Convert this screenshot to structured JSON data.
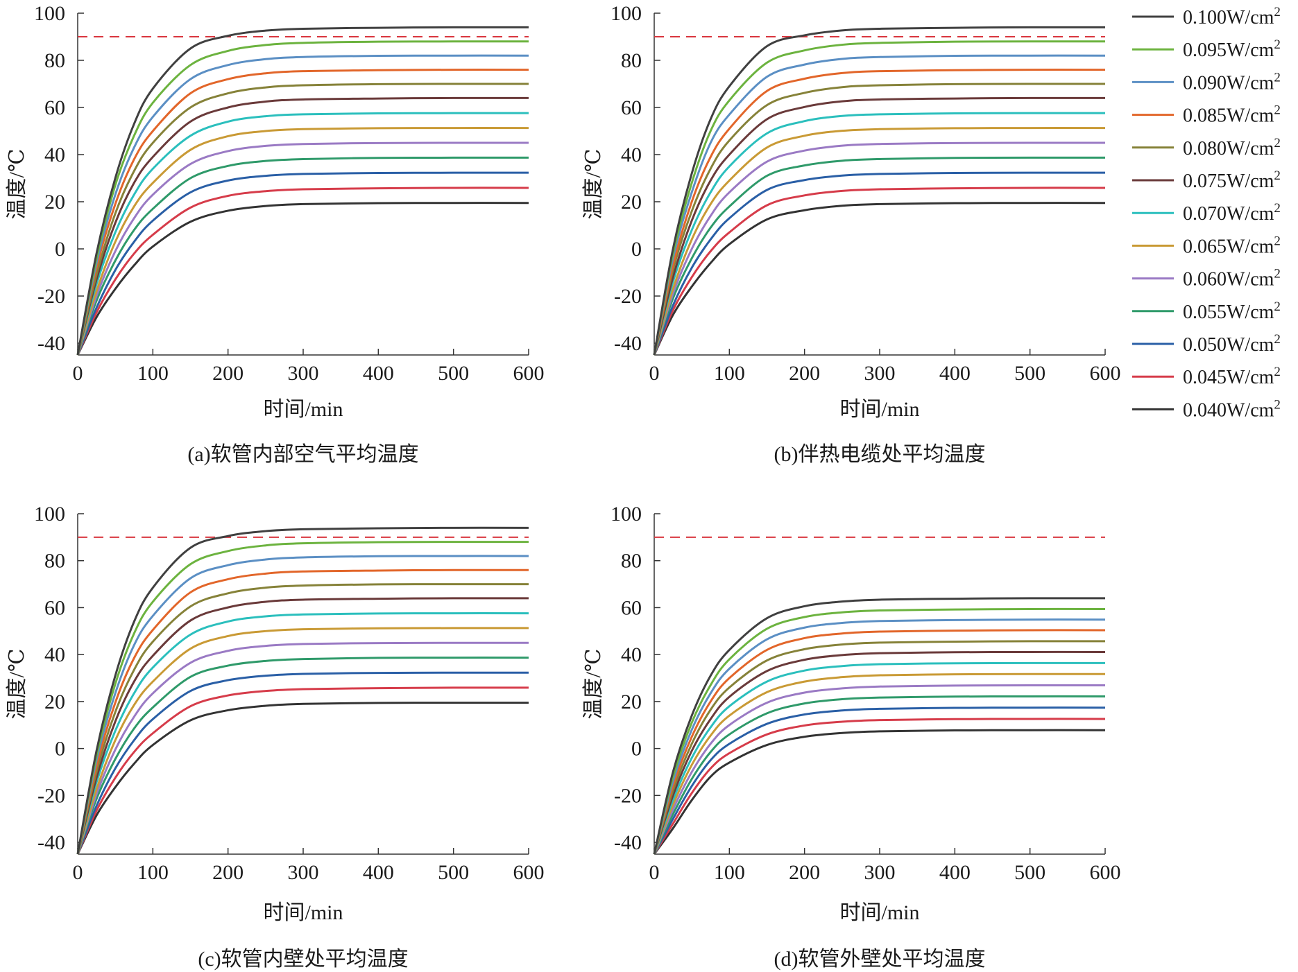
{
  "figure": {
    "legend_placement": "right",
    "threshold_color": "#d9363e"
  },
  "chart_data": [
    {
      "panel": "a",
      "type": "line",
      "caption": "(a)软管内部空气平均温度",
      "xlabel": "时间/min",
      "ylabel": "温度/℃",
      "xlim": [
        0,
        600
      ],
      "ylim": [
        -45,
        100
      ],
      "xticks": [
        "0",
        "100",
        "200",
        "300",
        "400",
        "500",
        "600"
      ],
      "yticks": [
        "-40",
        "-20",
        "0",
        "20",
        "40",
        "60",
        "80",
        "100"
      ],
      "threshold": 90,
      "start_value": -45,
      "x": [
        0,
        25,
        50,
        75,
        100,
        150,
        200,
        250,
        300,
        400,
        500,
        600
      ],
      "series": [
        {
          "name": "0.100W/cm2",
          "color": "#404040",
          "values": [
            -45,
            -2,
            30,
            53,
            68,
            85,
            90.4,
            92.6,
            93.4,
            93.8,
            94,
            94
          ]
        },
        {
          "name": "0.095W/cm2",
          "color": "#6cb33f",
          "values": [
            -45,
            -4,
            27,
            48,
            62,
            78,
            84,
            86.5,
            87.4,
            87.9,
            88,
            88
          ]
        },
        {
          "name": "0.090W/cm2",
          "color": "#5b8fc4",
          "values": [
            -45,
            -6,
            23,
            43,
            56,
            72,
            78,
            80.5,
            81.4,
            81.9,
            82,
            82
          ]
        },
        {
          "name": "0.085W/cm2",
          "color": "#e2662a",
          "values": [
            -45,
            -8,
            19,
            38,
            50,
            66,
            72,
            74.5,
            75.4,
            75.8,
            76,
            76
          ]
        },
        {
          "name": "0.080W/cm2",
          "color": "#868239",
          "values": [
            -45,
            -11,
            15,
            33,
            45,
            60,
            66,
            68.5,
            69.4,
            69.9,
            70,
            70
          ]
        },
        {
          "name": "0.075W/cm2",
          "color": "#6a3a3a",
          "values": [
            -45,
            -13,
            11,
            28,
            39,
            54,
            60,
            62.5,
            63.4,
            63.8,
            64,
            64
          ]
        },
        {
          "name": "0.070W/cm2",
          "color": "#2bbfbd",
          "values": [
            -45,
            -15,
            7,
            23,
            34,
            48,
            54,
            56.3,
            57.1,
            57.5,
            57.6,
            57.6
          ]
        },
        {
          "name": "0.065W/cm2",
          "color": "#c99a35",
          "values": [
            -45,
            -18,
            3,
            18,
            28,
            42,
            47.8,
            50,
            50.8,
            51.2,
            51.3,
            51.3
          ]
        },
        {
          "name": "0.060W/cm2",
          "color": "#9a7ac4",
          "values": [
            -45,
            -20,
            -1,
            13,
            23,
            36,
            41.5,
            43.7,
            44.5,
            44.9,
            45,
            45
          ]
        },
        {
          "name": "0.055W/cm2",
          "color": "#2f9a6a",
          "values": [
            -45,
            -22,
            -5,
            8,
            17,
            30,
            35.2,
            37.3,
            38.1,
            38.6,
            38.7,
            38.7
          ]
        },
        {
          "name": "0.050W/cm2",
          "color": "#2a5fa6",
          "values": [
            -45,
            -25,
            -9,
            3,
            12,
            24,
            29,
            31,
            31.8,
            32.2,
            32.3,
            32.3
          ]
        },
        {
          "name": "0.045W/cm2",
          "color": "#d63c4a",
          "values": [
            -45,
            -27,
            -13,
            -2,
            6,
            17.5,
            22.5,
            24.5,
            25.3,
            25.7,
            25.9,
            25.9
          ]
        },
        {
          "name": "0.040W/cm2",
          "color": "#333333",
          "values": [
            -45,
            -29,
            -17,
            -7,
            1,
            11.5,
            16.2,
            18.2,
            19,
            19.4,
            19.5,
            19.5
          ]
        }
      ]
    },
    {
      "panel": "b",
      "type": "line",
      "caption": "(b)伴热电缆处平均温度",
      "xlabel": "时间/min",
      "ylabel": "温度/℃",
      "xlim": [
        0,
        600
      ],
      "ylim": [
        -45,
        100
      ],
      "xticks": [
        "0",
        "100",
        "200",
        "300",
        "400",
        "500",
        "600"
      ],
      "yticks": [
        "-40",
        "-20",
        "0",
        "20",
        "40",
        "60",
        "80",
        "100"
      ],
      "threshold": 90,
      "start_value": -45,
      "x": [
        0,
        25,
        50,
        75,
        100,
        150,
        200,
        250,
        300,
        400,
        500,
        600
      ],
      "series": [
        {
          "name": "0.100W/cm2",
          "color": "#404040",
          "values": [
            -45,
            0,
            32,
            55,
            69,
            86,
            90.6,
            92.7,
            93.4,
            93.8,
            94,
            94
          ]
        },
        {
          "name": "0.095W/cm2",
          "color": "#6cb33f",
          "values": [
            -45,
            -2,
            28,
            50,
            63,
            79,
            84.2,
            86.6,
            87.4,
            87.9,
            88,
            88
          ]
        },
        {
          "name": "0.090W/cm2",
          "color": "#5b8fc4",
          "values": [
            -45,
            -4,
            24,
            45,
            57,
            73,
            78.2,
            80.6,
            81.4,
            81.9,
            82,
            82
          ]
        },
        {
          "name": "0.085W/cm2",
          "color": "#e2662a",
          "values": [
            -45,
            -7,
            20,
            39,
            51,
            67,
            72.2,
            74.6,
            75.4,
            75.8,
            76,
            76
          ]
        },
        {
          "name": "0.080W/cm2",
          "color": "#868239",
          "values": [
            -45,
            -9,
            16,
            34,
            46,
            61,
            66.2,
            68.6,
            69.4,
            69.9,
            70,
            70
          ]
        },
        {
          "name": "0.075W/cm2",
          "color": "#6a3a3a",
          "values": [
            -45,
            -12,
            12,
            29,
            40,
            55,
            60.2,
            62.6,
            63.4,
            63.8,
            64,
            64
          ]
        },
        {
          "name": "0.070W/cm2",
          "color": "#2bbfbd",
          "values": [
            -45,
            -14,
            8,
            24,
            35,
            49,
            54.2,
            56.4,
            57.1,
            57.5,
            57.6,
            57.6
          ]
        },
        {
          "name": "0.065W/cm2",
          "color": "#c99a35",
          "values": [
            -45,
            -17,
            4,
            19,
            29,
            43,
            48,
            50.1,
            50.8,
            51.2,
            51.3,
            51.3
          ]
        },
        {
          "name": "0.060W/cm2",
          "color": "#9a7ac4",
          "values": [
            -45,
            -19,
            0,
            14,
            24,
            37,
            41.7,
            43.8,
            44.5,
            44.9,
            45,
            45
          ]
        },
        {
          "name": "0.055W/cm2",
          "color": "#2f9a6a",
          "values": [
            -45,
            -21,
            -4,
            9,
            18,
            31,
            35.4,
            37.4,
            38.1,
            38.6,
            38.7,
            38.7
          ]
        },
        {
          "name": "0.050W/cm2",
          "color": "#2a5fa6",
          "values": [
            -45,
            -24,
            -8,
            4,
            13,
            25,
            29.2,
            31.1,
            31.8,
            32.2,
            32.3,
            32.3
          ]
        },
        {
          "name": "0.045W/cm2",
          "color": "#d63c4a",
          "values": [
            -45,
            -26,
            -12,
            -1,
            7,
            18.5,
            22.7,
            24.6,
            25.3,
            25.7,
            25.9,
            25.9
          ]
        },
        {
          "name": "0.040W/cm2",
          "color": "#333333",
          "values": [
            -45,
            -28,
            -16,
            -6,
            2,
            12.5,
            16.4,
            18.3,
            19,
            19.4,
            19.5,
            19.5
          ]
        }
      ]
    },
    {
      "panel": "c",
      "type": "line",
      "caption": "(c)软管内壁处平均温度",
      "xlabel": "时间/min",
      "ylabel": "温度/℃",
      "xlim": [
        0,
        600
      ],
      "ylim": [
        -45,
        100
      ],
      "xticks": [
        "0",
        "100",
        "200",
        "300",
        "400",
        "500",
        "600"
      ],
      "yticks": [
        "-40",
        "-20",
        "0",
        "20",
        "40",
        "60",
        "80",
        "100"
      ],
      "threshold": 90,
      "start_value": -45,
      "x": [
        0,
        25,
        50,
        75,
        100,
        150,
        200,
        250,
        300,
        400,
        500,
        600
      ],
      "series": [
        {
          "name": "0.100W/cm2",
          "color": "#404040",
          "values": [
            -45,
            -1,
            31,
            54,
            68.5,
            85.5,
            90.5,
            92.6,
            93.4,
            93.8,
            94,
            94
          ]
        },
        {
          "name": "0.095W/cm2",
          "color": "#6cb33f",
          "values": [
            -45,
            -3,
            27.5,
            49,
            62.5,
            78.5,
            84.1,
            86.5,
            87.4,
            87.9,
            88,
            88
          ]
        },
        {
          "name": "0.090W/cm2",
          "color": "#5b8fc4",
          "values": [
            -45,
            -5,
            23.5,
            44,
            56.5,
            72.5,
            78.1,
            80.5,
            81.4,
            81.9,
            82,
            82
          ]
        },
        {
          "name": "0.085W/cm2",
          "color": "#e2662a",
          "values": [
            -45,
            -7.5,
            19.5,
            38.5,
            50.5,
            66.5,
            72.1,
            74.5,
            75.4,
            75.8,
            76,
            76
          ]
        },
        {
          "name": "0.080W/cm2",
          "color": "#868239",
          "values": [
            -45,
            -10,
            15.5,
            33.5,
            45.5,
            60.5,
            66.1,
            68.5,
            69.4,
            69.9,
            70,
            70
          ]
        },
        {
          "name": "0.075W/cm2",
          "color": "#6a3a3a",
          "values": [
            -45,
            -12.5,
            11.5,
            28.5,
            39.5,
            54.5,
            60.1,
            62.5,
            63.4,
            63.8,
            64,
            64
          ]
        },
        {
          "name": "0.070W/cm2",
          "color": "#2bbfbd",
          "values": [
            -45,
            -14.5,
            7.5,
            23.5,
            34.5,
            48.5,
            54.1,
            56.3,
            57.1,
            57.5,
            57.6,
            57.6
          ]
        },
        {
          "name": "0.065W/cm2",
          "color": "#c99a35",
          "values": [
            -45,
            -17.5,
            3.5,
            18.5,
            28.5,
            42.5,
            47.9,
            50,
            50.8,
            51.2,
            51.3,
            51.3
          ]
        },
        {
          "name": "0.060W/cm2",
          "color": "#9a7ac4",
          "values": [
            -45,
            -19.5,
            -0.5,
            13.5,
            23.5,
            36.5,
            41.6,
            43.7,
            44.5,
            44.9,
            45,
            45
          ]
        },
        {
          "name": "0.055W/cm2",
          "color": "#2f9a6a",
          "values": [
            -45,
            -21.5,
            -4.5,
            8.5,
            17.5,
            30.5,
            35.3,
            37.3,
            38.1,
            38.6,
            38.7,
            38.7
          ]
        },
        {
          "name": "0.050W/cm2",
          "color": "#2a5fa6",
          "values": [
            -45,
            -24.5,
            -8.5,
            3.5,
            12.5,
            24.5,
            29.1,
            31,
            31.8,
            32.2,
            32.3,
            32.3
          ]
        },
        {
          "name": "0.045W/cm2",
          "color": "#d63c4a",
          "values": [
            -45,
            -26.5,
            -12.5,
            -1.5,
            6.5,
            18,
            22.6,
            24.5,
            25.3,
            25.7,
            25.9,
            25.9
          ]
        },
        {
          "name": "0.040W/cm2",
          "color": "#333333",
          "values": [
            -45,
            -28.5,
            -16.5,
            -6.5,
            1.5,
            12,
            16.3,
            18.2,
            19,
            19.4,
            19.5,
            19.5
          ]
        }
      ]
    },
    {
      "panel": "d",
      "type": "line",
      "caption": "(d)软管外壁处平均温度",
      "xlabel": "时间/min",
      "ylabel": "温度/℃",
      "xlim": [
        0,
        600
      ],
      "ylim": [
        -45,
        100
      ],
      "xticks": [
        "0",
        "100",
        "200",
        "300",
        "400",
        "500",
        "600"
      ],
      "yticks": [
        "-40",
        "-20",
        "0",
        "20",
        "40",
        "60",
        "80",
        "100"
      ],
      "threshold": 90,
      "start_value": -45,
      "x": [
        0,
        25,
        50,
        75,
        100,
        150,
        200,
        250,
        300,
        400,
        500,
        600
      ],
      "series": [
        {
          "name": "0.100W/cm2",
          "color": "#404040",
          "values": [
            -45,
            -10,
            14,
            31,
            42,
            55.5,
            60.6,
            62.6,
            63.4,
            63.8,
            64,
            64
          ]
        },
        {
          "name": "0.095W/cm2",
          "color": "#6cb33f",
          "values": [
            -45,
            -12,
            11,
            27,
            38,
            51,
            56,
            58,
            58.8,
            59.2,
            59.4,
            59.4
          ]
        },
        {
          "name": "0.090W/cm2",
          "color": "#5b8fc4",
          "values": [
            -45,
            -14,
            8,
            23.5,
            34,
            46.5,
            51.5,
            53.5,
            54.3,
            54.7,
            54.9,
            54.9
          ]
        },
        {
          "name": "0.085W/cm2",
          "color": "#e2662a",
          "values": [
            -45,
            -16,
            5,
            20,
            30,
            42,
            47,
            49,
            49.8,
            50.2,
            50.4,
            50.4
          ]
        },
        {
          "name": "0.080W/cm2",
          "color": "#868239",
          "values": [
            -45,
            -18,
            2,
            16.5,
            26,
            37.5,
            42.3,
            44.3,
            45.1,
            45.5,
            45.7,
            45.7
          ]
        },
        {
          "name": "0.075W/cm2",
          "color": "#6a3a3a",
          "values": [
            -45,
            -20,
            -1,
            12.5,
            22,
            33,
            37.8,
            39.8,
            40.6,
            41,
            41.1,
            41.1
          ]
        },
        {
          "name": "0.070W/cm2",
          "color": "#2bbfbd",
          "values": [
            -45,
            -22,
            -4,
            9,
            18,
            28.5,
            33.2,
            35.1,
            35.9,
            36.3,
            36.4,
            36.4
          ]
        },
        {
          "name": "0.065W/cm2",
          "color": "#c99a35",
          "values": [
            -45,
            -24,
            -7,
            5.5,
            14,
            24,
            28.5,
            30.4,
            31.2,
            31.6,
            31.7,
            31.7
          ]
        },
        {
          "name": "0.060W/cm2",
          "color": "#9a7ac4",
          "values": [
            -45,
            -26,
            -10,
            2,
            10,
            19.5,
            23.8,
            25.6,
            26.4,
            26.8,
            26.9,
            26.9
          ]
        },
        {
          "name": "0.055W/cm2",
          "color": "#2f9a6a",
          "values": [
            -45,
            -28,
            -13,
            -1.5,
            6,
            15,
            19.2,
            21,
            21.7,
            22.1,
            22.2,
            22.2
          ]
        },
        {
          "name": "0.050W/cm2",
          "color": "#2a5fa6",
          "values": [
            -45,
            -30,
            -16,
            -5,
            2,
            10.5,
            14.5,
            16.2,
            16.9,
            17.3,
            17.4,
            17.4
          ]
        },
        {
          "name": "0.045W/cm2",
          "color": "#d63c4a",
          "values": [
            -45,
            -32,
            -19,
            -8.5,
            -2,
            6,
            9.8,
            11.4,
            12.1,
            12.5,
            12.6,
            12.6
          ]
        },
        {
          "name": "0.040W/cm2",
          "color": "#333333",
          "values": [
            -45,
            -34,
            -22,
            -12,
            -6,
            1.5,
            5,
            6.6,
            7.3,
            7.7,
            7.8,
            7.8
          ]
        }
      ]
    }
  ]
}
